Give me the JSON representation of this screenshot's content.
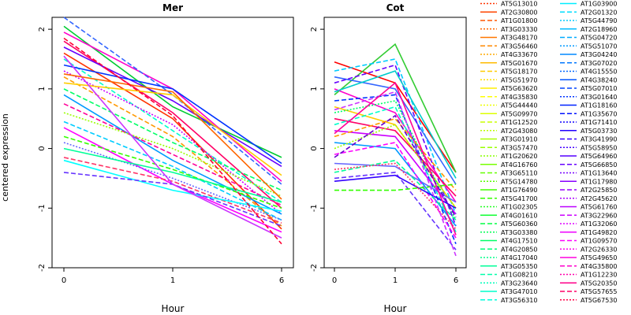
{
  "chart_data": {
    "type": "line",
    "ylabel": "centered expression",
    "ylim": [
      -2,
      2.2
    ],
    "yticks": [
      -2,
      -1,
      0,
      1,
      2
    ],
    "panels": [
      {
        "title": "Mer",
        "xlabel": "Hour",
        "x": [
          0,
          1,
          6
        ],
        "xtick_labels": [
          "0",
          "1",
          "6"
        ],
        "series": [
          {
            "values": [
              2.05,
              0.7,
              -0.15
            ],
            "color": "#00cc33",
            "dash": "solid"
          },
          {
            "values": [
              1.95,
              1.0,
              -0.55
            ],
            "color": "#ff00cc",
            "dash": "solid"
          },
          {
            "values": [
              2.2,
              0.9,
              -0.6
            ],
            "color": "#3366ff",
            "dash": "dash"
          },
          {
            "values": [
              1.8,
              0.6,
              -1.0
            ],
            "color": "#ff0066",
            "dash": "solid"
          },
          {
            "values": [
              1.7,
              0.8,
              -0.3
            ],
            "color": "#6600ff",
            "dash": "solid"
          },
          {
            "values": [
              1.6,
              0.5,
              -1.35
            ],
            "color": "#ff3300",
            "dash": "solid"
          },
          {
            "values": [
              1.5,
              0.3,
              -0.9
            ],
            "color": "#00ffcc",
            "dash": "dash"
          },
          {
            "values": [
              1.4,
              1.0,
              -0.25
            ],
            "color": "#0033ff",
            "dash": "solid"
          },
          {
            "values": [
              1.3,
              0.4,
              -1.1
            ],
            "color": "#cc00ff",
            "dash": "dot"
          },
          {
            "values": [
              1.2,
              0.2,
              -1.3
            ],
            "color": "#ff9900",
            "dash": "dash"
          },
          {
            "values": [
              1.1,
              0.9,
              -0.45
            ],
            "color": "#ffcc00",
            "dash": "solid"
          },
          {
            "values": [
              1.0,
              0.1,
              -0.7
            ],
            "color": "#00ff66",
            "dash": "dash"
          },
          {
            "values": [
              0.9,
              -0.2,
              -1.1
            ],
            "color": "#0099ff",
            "dash": "solid"
          },
          {
            "values": [
              0.75,
              -0.1,
              -0.95
            ],
            "color": "#ff0099",
            "dash": "dash"
          },
          {
            "values": [
              0.6,
              0.0,
              -0.8
            ],
            "color": "#99ff00",
            "dash": "dot"
          },
          {
            "values": [
              0.45,
              -0.3,
              -1.2
            ],
            "color": "#00ccff",
            "dash": "dash"
          },
          {
            "values": [
              0.35,
              -0.6,
              -1.4
            ],
            "color": "#ff00ff",
            "dash": "solid"
          },
          {
            "values": [
              0.2,
              -0.35,
              -1.0
            ],
            "color": "#33ff00",
            "dash": "dash"
          },
          {
            "values": [
              0.1,
              -0.5,
              -1.2
            ],
            "color": "#6666ff",
            "dash": "dot"
          },
          {
            "values": [
              0.0,
              -0.4,
              -0.9
            ],
            "color": "#00ff99",
            "dash": "solid"
          },
          {
            "values": [
              -0.15,
              -0.55,
              -1.25
            ],
            "color": "#ff3366",
            "dash": "dash"
          },
          {
            "values": [
              -0.2,
              -0.7,
              -1.05
            ],
            "color": "#00ffff",
            "dash": "solid"
          },
          {
            "values": [
              -0.4,
              -0.6,
              -1.3
            ],
            "color": "#6633ff",
            "dash": "dash"
          },
          {
            "values": [
              1.55,
              -0.6,
              -1.5
            ],
            "color": "#cc33ff",
            "dash": "solid"
          },
          {
            "values": [
              1.25,
              0.95,
              -0.85
            ],
            "color": "#ff6600",
            "dash": "solid"
          },
          {
            "values": [
              1.85,
              0.55,
              -1.6
            ],
            "color": "#ff0033",
            "dash": "dash"
          }
        ]
      },
      {
        "title": "Cot",
        "xlabel": "Hour",
        "x": [
          0,
          1,
          6
        ],
        "xtick_labels": [
          "0",
          "1",
          "6"
        ],
        "series": [
          {
            "values": [
              1.45,
              1.1,
              -0.4
            ],
            "color": "#ff0000",
            "dash": "solid"
          },
          {
            "values": [
              0.9,
              1.75,
              -0.4
            ],
            "color": "#33cc33",
            "dash": "solid"
          },
          {
            "values": [
              1.3,
              1.5,
              -1.1
            ],
            "color": "#00ccff",
            "dash": "dash"
          },
          {
            "values": [
              1.2,
              1.0,
              -0.6
            ],
            "color": "#3366ff",
            "dash": "solid"
          },
          {
            "values": [
              1.1,
              1.4,
              -1.3
            ],
            "color": "#6600ff",
            "dash": "dash"
          },
          {
            "values": [
              1.0,
              0.6,
              -0.9
            ],
            "color": "#ff00cc",
            "dash": "solid"
          },
          {
            "values": [
              0.8,
              0.9,
              -1.6
            ],
            "color": "#0033ff",
            "dash": "dash"
          },
          {
            "values": [
              0.7,
              0.4,
              -1.0
            ],
            "color": "#ffcc00",
            "dash": "solid"
          },
          {
            "values": [
              0.6,
              0.8,
              -1.2
            ],
            "color": "#00ff66",
            "dash": "dot"
          },
          {
            "values": [
              0.5,
              0.3,
              -0.8
            ],
            "color": "#ff0066",
            "dash": "solid"
          },
          {
            "values": [
              0.4,
              0.7,
              -1.4
            ],
            "color": "#00ffcc",
            "dash": "dash"
          },
          {
            "values": [
              0.3,
              0.2,
              -1.1
            ],
            "color": "#cc00ff",
            "dash": "solid"
          },
          {
            "values": [
              0.2,
              0.5,
              -0.7
            ],
            "color": "#ff9900",
            "dash": "dash"
          },
          {
            "values": [
              0.1,
              0.0,
              -1.3
            ],
            "color": "#0099ff",
            "dash": "solid"
          },
          {
            "values": [
              0.0,
              0.4,
              -1.0
            ],
            "color": "#99ff00",
            "dash": "dot"
          },
          {
            "values": [
              -0.1,
              0.1,
              -1.5
            ],
            "color": "#ff00ff",
            "dash": "dash"
          },
          {
            "values": [
              -0.25,
              -0.3,
              -0.9
            ],
            "color": "#6666ff",
            "dash": "solid"
          },
          {
            "values": [
              -0.4,
              -0.2,
              -1.2
            ],
            "color": "#00ff99",
            "dash": "dash"
          },
          {
            "values": [
              -0.5,
              -0.4,
              -1.7
            ],
            "color": "#6633ff",
            "dash": "dash"
          },
          {
            "values": [
              -0.55,
              -0.45,
              -1.0
            ],
            "color": "#3300ff",
            "dash": "solid"
          },
          {
            "values": [
              -0.7,
              -0.7,
              -0.6
            ],
            "color": "#33ff00",
            "dash": "dash"
          },
          {
            "values": [
              -0.35,
              -0.25,
              -1.35
            ],
            "color": "#ff3366",
            "dash": "dot"
          },
          {
            "values": [
              0.95,
              1.3,
              -0.5
            ],
            "color": "#00cccc",
            "dash": "solid"
          },
          {
            "values": [
              0.65,
              0.95,
              -1.8
            ],
            "color": "#cc33ff",
            "dash": "dash"
          },
          {
            "values": [
              0.25,
              1.1,
              -1.45
            ],
            "color": "#ff0099",
            "dash": "solid"
          },
          {
            "values": [
              -0.15,
              0.55,
              -1.15
            ],
            "color": "#6600cc",
            "dash": "dash"
          }
        ]
      }
    ],
    "legend": {
      "placement": "right",
      "columns": [
        [
          {
            "label": "AT5G13010",
            "color": "#ff3300",
            "dash": "dot"
          },
          {
            "label": "AT2G30800",
            "color": "#ff4400",
            "dash": "solid"
          },
          {
            "label": "AT1G01800",
            "color": "#ff5500",
            "dash": "dash"
          },
          {
            "label": "AT3G03330",
            "color": "#ff6600",
            "dash": "dot"
          },
          {
            "label": "AT3G48170",
            "color": "#ff7700",
            "dash": "solid"
          },
          {
            "label": "AT3G56460",
            "color": "#ff8800",
            "dash": "dash"
          },
          {
            "label": "AT4G33670",
            "color": "#ffaa00",
            "dash": "dot"
          },
          {
            "label": "AT5G01670",
            "color": "#ffbb00",
            "dash": "solid"
          },
          {
            "label": "AT5G18170",
            "color": "#ffcc00",
            "dash": "dash"
          },
          {
            "label": "AT5G51970",
            "color": "#ffdd00",
            "dash": "dot"
          },
          {
            "label": "AT5G63620",
            "color": "#ffee00",
            "dash": "solid"
          },
          {
            "label": "AT4G35830",
            "color": "#ffff00",
            "dash": "dash"
          },
          {
            "label": "AT5G44440",
            "color": "#eeff00",
            "dash": "dot"
          },
          {
            "label": "AT5G09970",
            "color": "#ddff00",
            "dash": "solid"
          },
          {
            "label": "AT1G12520",
            "color": "#ccff00",
            "dash": "dash"
          },
          {
            "label": "AT2G43080",
            "color": "#bbff00",
            "dash": "dot"
          },
          {
            "label": "AT3G01910",
            "color": "#aaff00",
            "dash": "solid"
          },
          {
            "label": "AT3G57470",
            "color": "#99ff00",
            "dash": "dash"
          },
          {
            "label": "AT1G20620",
            "color": "#88ff00",
            "dash": "dot"
          },
          {
            "label": "AT4G16760",
            "color": "#77ff00",
            "dash": "solid"
          },
          {
            "label": "AT3G65110",
            "color": "#66ff00",
            "dash": "dash"
          },
          {
            "label": "AT5G14780",
            "color": "#55ff00",
            "dash": "dot"
          },
          {
            "label": "AT1G76490",
            "color": "#44ff00",
            "dash": "solid"
          },
          {
            "label": "AT5G41700",
            "color": "#33ff00",
            "dash": "dash"
          },
          {
            "label": "AT1G02305",
            "color": "#22ff22",
            "dash": "dot"
          },
          {
            "label": "AT4G01610",
            "color": "#11ff33",
            "dash": "solid"
          },
          {
            "label": "AT5G60360",
            "color": "#00ff44",
            "dash": "dash"
          },
          {
            "label": "AT3G03380",
            "color": "#00ff55",
            "dash": "dot"
          },
          {
            "label": "AT4G17510",
            "color": "#00ff66",
            "dash": "solid"
          },
          {
            "label": "AT4G20850",
            "color": "#00ff77",
            "dash": "dash"
          },
          {
            "label": "AT4G17040",
            "color": "#00ff88",
            "dash": "dot"
          },
          {
            "label": "AT3G05350",
            "color": "#00ff99",
            "dash": "solid"
          },
          {
            "label": "AT1G08210",
            "color": "#00ffaa",
            "dash": "dash"
          },
          {
            "label": "AT3G23640",
            "color": "#00ffbb",
            "dash": "dot"
          },
          {
            "label": "AT3G47010",
            "color": "#00ffcc",
            "dash": "solid"
          },
          {
            "label": "AT3G56310",
            "color": "#00ffdd",
            "dash": "dash"
          }
        ],
        [
          {
            "label": "AT1G03900",
            "color": "#00eeff",
            "dash": "solid"
          },
          {
            "label": "AT2G01320",
            "color": "#00ddff",
            "dash": "dash"
          },
          {
            "label": "AT5G44790",
            "color": "#00ccff",
            "dash": "dot"
          },
          {
            "label": "AT2G18960",
            "color": "#00bbff",
            "dash": "solid"
          },
          {
            "label": "AT5G04720",
            "color": "#00aaff",
            "dash": "dash"
          },
          {
            "label": "AT5G51070",
            "color": "#0099ff",
            "dash": "dot"
          },
          {
            "label": "AT3G04240",
            "color": "#0088ff",
            "dash": "solid"
          },
          {
            "label": "AT3G07020",
            "color": "#0077ff",
            "dash": "dash"
          },
          {
            "label": "AT4G15550",
            "color": "#0066ff",
            "dash": "dot"
          },
          {
            "label": "AT4G38240",
            "color": "#0055ff",
            "dash": "solid"
          },
          {
            "label": "AT5G07010",
            "color": "#0044ff",
            "dash": "dash"
          },
          {
            "label": "AT3G01640",
            "color": "#0033ff",
            "dash": "dot"
          },
          {
            "label": "AT1G18160",
            "color": "#0022ff",
            "dash": "solid"
          },
          {
            "label": "AT1G35670",
            "color": "#0011ff",
            "dash": "dash"
          },
          {
            "label": "AT1G71410",
            "color": "#1100ff",
            "dash": "dot"
          },
          {
            "label": "AT5G03730",
            "color": "#2200ff",
            "dash": "solid"
          },
          {
            "label": "AT3G41990",
            "color": "#3300ff",
            "dash": "dash"
          },
          {
            "label": "AT5G58950",
            "color": "#4400ff",
            "dash": "dot"
          },
          {
            "label": "AT5G64960",
            "color": "#5500ff",
            "dash": "solid"
          },
          {
            "label": "AT5G66850",
            "color": "#6600ff",
            "dash": "dash"
          },
          {
            "label": "AT1G13640",
            "color": "#7700ff",
            "dash": "dot"
          },
          {
            "label": "AT1G17980",
            "color": "#8800ff",
            "dash": "solid"
          },
          {
            "label": "AT2G25850",
            "color": "#9900ff",
            "dash": "dash"
          },
          {
            "label": "AT2G45620",
            "color": "#aa00ff",
            "dash": "dot"
          },
          {
            "label": "AT5G61760",
            "color": "#bb00ff",
            "dash": "solid"
          },
          {
            "label": "AT3G22960",
            "color": "#cc00ff",
            "dash": "dash"
          },
          {
            "label": "AT1G32060",
            "color": "#dd00ff",
            "dash": "dot"
          },
          {
            "label": "AT1G49820",
            "color": "#ee00ff",
            "dash": "solid"
          },
          {
            "label": "AT1G09570",
            "color": "#ff00ff",
            "dash": "dash"
          },
          {
            "label": "AT2G26330",
            "color": "#ff00ee",
            "dash": "dot"
          },
          {
            "label": "AT5G49650",
            "color": "#ff00dd",
            "dash": "solid"
          },
          {
            "label": "AT4G35800",
            "color": "#ff00cc",
            "dash": "dash"
          },
          {
            "label": "AT1G12230",
            "color": "#ff00aa",
            "dash": "dot"
          },
          {
            "label": "AT5G20350",
            "color": "#ff0088",
            "dash": "solid"
          },
          {
            "label": "AT5G57655",
            "color": "#ff0066",
            "dash": "dash"
          },
          {
            "label": "AT5G67530",
            "color": "#ff0044",
            "dash": "dot"
          }
        ]
      ]
    }
  }
}
